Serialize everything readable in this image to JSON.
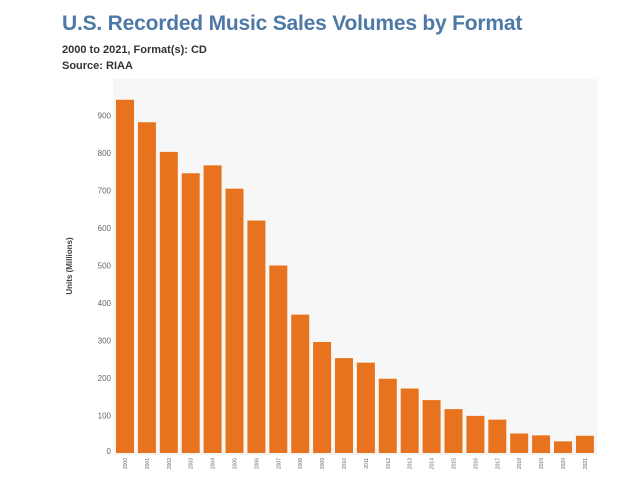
{
  "header": {
    "title": "U.S. Recorded Music Sales Volumes by Format",
    "subtitle": "2000 to 2021, Format(s): CD",
    "source": "Source: RIAA"
  },
  "chart_data": {
    "type": "bar",
    "categories": [
      "2000",
      "2001",
      "2002",
      "2003",
      "2004",
      "2005",
      "2006",
      "2007",
      "2008",
      "2009",
      "2010",
      "2011",
      "2012",
      "2013",
      "2014",
      "2015",
      "2016",
      "2017",
      "2018",
      "2019",
      "2020",
      "2021"
    ],
    "values": [
      942,
      882,
      803,
      746,
      767,
      705,
      620,
      500,
      369,
      296,
      253,
      241,
      198,
      172,
      141,
      117,
      99,
      89,
      52,
      47,
      31,
      46
    ],
    "title": "U.S. Recorded Music Sales Volumes by Format",
    "xlabel": "",
    "ylabel": "Units (Millions)",
    "ylim": [
      0,
      1000
    ],
    "yticks": [
      0,
      100,
      200,
      300,
      400,
      500,
      600,
      700,
      800,
      900
    ],
    "grid": false,
    "bar_color": "#e8731e",
    "title_color": "#4e79a7"
  }
}
